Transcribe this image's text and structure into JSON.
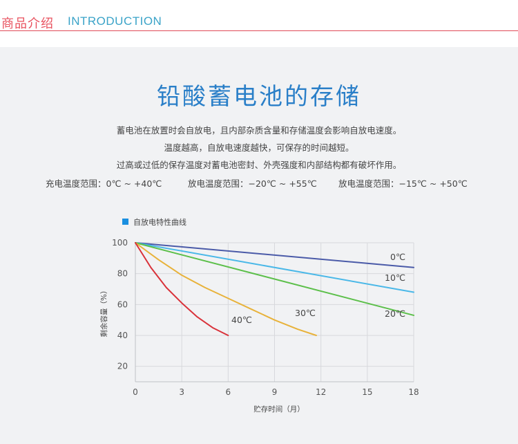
{
  "header": {
    "title_cn": "商品介绍",
    "title_en": "INTRODUCTION"
  },
  "intro": {
    "title": "铅酸蓄电池的存储",
    "lines": [
      "蓄电池在放置时会自放电，且内部杂质含量和存储温度会影响自放电速度。",
      "温度越高，自放电速度越快，可保存的时间越短。",
      "过高或过低的保存温度对蓄电池密封、外壳强度和内部结构都有破坏作用。"
    ],
    "ranges": [
      "充电温度范围：0℃ ~ +40℃",
      "放电温度范围：−20℃ ~ +55℃",
      "放电温度范围：−15℃ ~ +50℃"
    ]
  },
  "colors": {
    "title": "#2a7fc8",
    "header_cn": "#e8515e",
    "header_en": "#3aa3c8",
    "panel": "#f1f2f4"
  },
  "chart_data": {
    "type": "line",
    "legend": "自放电特性曲线",
    "legend_color": "#1a8fe0",
    "legend_position": "top-left",
    "xlabel": "贮存时间（月）",
    "ylabel": "剩余容量（%）",
    "xlim": [
      0,
      18
    ],
    "ylim": [
      10,
      100
    ],
    "xticks": [
      0,
      3,
      6,
      9,
      12,
      15,
      18
    ],
    "yticks": [
      20,
      40,
      60,
      80,
      100
    ],
    "grid": true,
    "series": [
      {
        "name": "0℃",
        "color": "#4a5aa8",
        "x": [
          0,
          18
        ],
        "y": [
          100,
          84
        ]
      },
      {
        "name": "10℃",
        "color": "#4ab8e8",
        "x": [
          0,
          18
        ],
        "y": [
          100,
          68
        ]
      },
      {
        "name": "20℃",
        "color": "#5cbf4a",
        "x": [
          0,
          18
        ],
        "y": [
          100,
          53
        ]
      },
      {
        "name": "30℃",
        "color": "#e8b23a",
        "x": [
          0,
          1.5,
          3,
          4.5,
          6,
          7.5,
          9,
          10.5,
          11.7
        ],
        "y": [
          100,
          89,
          79,
          71,
          64,
          57,
          50,
          44,
          40
        ]
      },
      {
        "name": "40℃",
        "color": "#d9323a",
        "x": [
          0,
          1,
          2,
          3,
          4,
          5,
          6
        ],
        "y": [
          100,
          84,
          71,
          61,
          52,
          45,
          40
        ]
      }
    ]
  }
}
